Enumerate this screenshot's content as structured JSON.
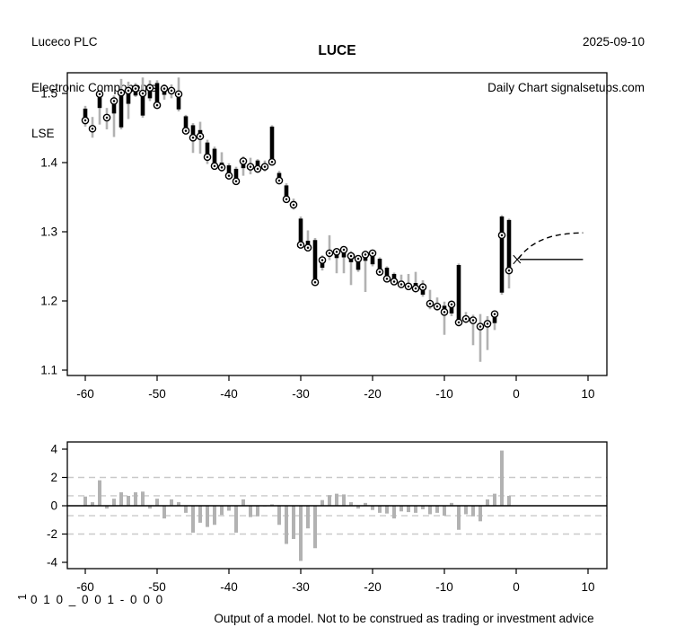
{
  "header": {
    "company": "Luceco PLC",
    "sector": "Electronic Components",
    "exchange": "LSE",
    "date": "2025-09-10",
    "subtitle": "Daily Chart signalsetups.com"
  },
  "title": "LUCE",
  "footer": {
    "side_label": "1",
    "code": "0 1 0 _ 0 0 1 - 0 0 0",
    "disclaimer": "Output of a model. Not to be construed as trading or investment advice"
  },
  "colors": {
    "bar": "#000000",
    "wick": "#b2b2b2",
    "model_bar": "#b2b2b2",
    "threshold": "#c9c9c9",
    "axis": "#000000",
    "background": "#ffffff"
  },
  "chart_data": [
    {
      "type": "ohlc-bars",
      "title": "LUCE",
      "xlabel": "",
      "ylabel": "",
      "xlim": [
        -62.5,
        12.5
      ],
      "ylim": [
        1.095,
        1.535
      ],
      "xticks": [
        -60,
        -50,
        -40,
        -30,
        -20,
        -10,
        0,
        10
      ],
      "yticks": [
        1.1,
        1.2,
        1.3,
        1.4,
        1.5
      ],
      "grid": false,
      "bar_fields": [
        "day",
        "high",
        "low",
        "bar_top",
        "bar_bottom",
        "close"
      ],
      "bars": [
        [
          -60,
          1.482,
          1.452,
          1.478,
          1.461,
          1.461
        ],
        [
          -59,
          1.466,
          1.436,
          1.452,
          1.446,
          1.449
        ],
        [
          -58,
          1.501,
          1.455,
          1.499,
          1.479,
          1.499
        ],
        [
          -57,
          1.479,
          1.448,
          1.469,
          1.461,
          1.465
        ],
        [
          -56,
          1.497,
          1.437,
          1.489,
          1.471,
          1.489
        ],
        [
          -55,
          1.521,
          1.448,
          1.501,
          1.451,
          1.501
        ],
        [
          -54,
          1.517,
          1.463,
          1.504,
          1.485,
          1.504
        ],
        [
          -53,
          1.515,
          1.495,
          1.507,
          1.497,
          1.507
        ],
        [
          -52,
          1.523,
          1.465,
          1.5,
          1.468,
          1.5
        ],
        [
          -51,
          1.519,
          1.489,
          1.508,
          1.493,
          1.508
        ],
        [
          -50,
          1.519,
          1.479,
          1.515,
          1.483,
          1.483
        ],
        [
          -49,
          1.513,
          1.491,
          1.507,
          1.498,
          1.507
        ],
        [
          -48,
          1.513,
          1.493,
          1.506,
          1.501,
          1.504
        ],
        [
          -47,
          1.523,
          1.474,
          1.499,
          1.477,
          1.499
        ],
        [
          -46,
          1.469,
          1.441,
          1.467,
          1.446,
          1.446
        ],
        [
          -45,
          1.457,
          1.414,
          1.454,
          1.436,
          1.436
        ],
        [
          -44,
          1.459,
          1.413,
          1.447,
          1.437,
          1.438
        ],
        [
          -43,
          1.433,
          1.398,
          1.429,
          1.407,
          1.408
        ],
        [
          -42,
          1.423,
          1.39,
          1.42,
          1.394,
          1.395
        ],
        [
          -41,
          1.415,
          1.387,
          1.4,
          1.392,
          1.393
        ],
        [
          -40,
          1.399,
          1.375,
          1.396,
          1.38,
          1.381
        ],
        [
          -39,
          1.394,
          1.369,
          1.391,
          1.372,
          1.373
        ],
        [
          -38,
          1.409,
          1.381,
          1.402,
          1.392,
          1.402
        ],
        [
          -37,
          1.407,
          1.383,
          1.396,
          1.39,
          1.394
        ],
        [
          -36,
          1.405,
          1.385,
          1.403,
          1.39,
          1.391
        ],
        [
          -35,
          1.403,
          1.387,
          1.397,
          1.391,
          1.394
        ],
        [
          -34,
          1.454,
          1.396,
          1.452,
          1.4,
          1.401
        ],
        [
          -33,
          1.388,
          1.37,
          1.385,
          1.373,
          1.374
        ],
        [
          -32,
          1.37,
          1.343,
          1.367,
          1.346,
          1.347
        ],
        [
          -31,
          1.348,
          1.332,
          1.344,
          1.337,
          1.339
        ],
        [
          -30,
          1.322,
          1.277,
          1.319,
          1.28,
          1.281
        ],
        [
          -29,
          1.302,
          1.272,
          1.287,
          1.277,
          1.277
        ],
        [
          -28,
          1.291,
          1.222,
          1.288,
          1.226,
          1.227
        ],
        [
          -27,
          1.266,
          1.244,
          1.261,
          1.248,
          1.259
        ],
        [
          -26,
          1.295,
          1.259,
          1.272,
          1.266,
          1.269
        ],
        [
          -25,
          1.276,
          1.24,
          1.273,
          1.262,
          1.271
        ],
        [
          -24,
          1.278,
          1.24,
          1.275,
          1.263,
          1.274
        ],
        [
          -23,
          1.272,
          1.223,
          1.268,
          1.256,
          1.265
        ],
        [
          -22,
          1.266,
          1.242,
          1.262,
          1.245,
          1.261
        ],
        [
          -21,
          1.273,
          1.213,
          1.269,
          1.258,
          1.267
        ],
        [
          -20,
          1.272,
          1.25,
          1.27,
          1.253,
          1.269
        ],
        [
          -19,
          1.263,
          1.238,
          1.261,
          1.241,
          1.242
        ],
        [
          -18,
          1.25,
          1.228,
          1.248,
          1.231,
          1.232
        ],
        [
          -17,
          1.241,
          1.223,
          1.239,
          1.227,
          1.228
        ],
        [
          -16,
          1.238,
          1.22,
          1.229,
          1.223,
          1.224
        ],
        [
          -15,
          1.239,
          1.217,
          1.224,
          1.22,
          1.221
        ],
        [
          -14,
          1.242,
          1.214,
          1.226,
          1.217,
          1.218
        ],
        [
          -13,
          1.23,
          1.206,
          1.221,
          1.209,
          1.22
        ],
        [
          -12,
          1.216,
          1.188,
          1.198,
          1.194,
          1.196
        ],
        [
          -11,
          1.205,
          1.186,
          1.194,
          1.19,
          1.192
        ],
        [
          -10,
          1.199,
          1.151,
          1.193,
          1.183,
          1.184
        ],
        [
          -9,
          1.2,
          1.178,
          1.196,
          1.182,
          1.195
        ],
        [
          -8,
          1.254,
          1.163,
          1.252,
          1.167,
          1.169
        ],
        [
          -7,
          1.184,
          1.168,
          1.177,
          1.171,
          1.174
        ],
        [
          -6,
          1.18,
          1.136,
          1.176,
          1.168,
          1.172
        ],
        [
          -5,
          1.181,
          1.112,
          1.167,
          1.16,
          1.163
        ],
        [
          -4,
          1.178,
          1.129,
          1.172,
          1.164,
          1.167
        ],
        [
          -3,
          1.186,
          1.158,
          1.183,
          1.168,
          1.181
        ],
        [
          -2,
          1.324,
          1.209,
          1.322,
          1.212,
          1.295
        ],
        [
          -1,
          1.319,
          1.218,
          1.317,
          1.242,
          1.244
        ]
      ],
      "forecast": {
        "solid_level": 1.26,
        "solid_from": 0.5,
        "solid_to": 9.3,
        "dashed": [
          [
            0.3,
            1.261
          ],
          [
            1,
            1.27
          ],
          [
            2,
            1.279
          ],
          [
            3,
            1.2855
          ],
          [
            4,
            1.29
          ],
          [
            5,
            1.2935
          ],
          [
            6,
            1.2955
          ],
          [
            7,
            1.297
          ],
          [
            8,
            1.298
          ],
          [
            9.3,
            1.2985
          ]
        ],
        "fork": [
          [
            -0.4,
            1.266,
            0.6,
            1.2545
          ],
          [
            -0.4,
            1.2535,
            0.6,
            1.2655
          ]
        ]
      }
    },
    {
      "type": "bar",
      "title": "",
      "xlabel": "",
      "ylabel": "1",
      "xlim": [
        -62.5,
        12.5
      ],
      "ylim": [
        -4.4,
        4.4
      ],
      "xticks": [
        -60,
        -50,
        -40,
        -30,
        -20,
        -10,
        0,
        10
      ],
      "yticks": [
        -4,
        -2,
        0,
        2,
        4
      ],
      "thresholds": [
        2,
        0.7,
        -0.7,
        -2
      ],
      "zero_line": 0,
      "x": [
        -60,
        -59,
        -58,
        -57,
        -56,
        -55,
        -54,
        -53,
        -52,
        -51,
        -50,
        -49,
        -48,
        -47,
        -46,
        -45,
        -44,
        -43,
        -42,
        -41,
        -40,
        -39,
        -38,
        -37,
        -36,
        -35,
        -34,
        -33,
        -32,
        -31,
        -30,
        -29,
        -28,
        -27,
        -26,
        -25,
        -24,
        -23,
        -22,
        -21,
        -20,
        -19,
        -18,
        -17,
        -16,
        -15,
        -14,
        -13,
        -12,
        -11,
        -10,
        -9,
        -8,
        -7,
        -6,
        -5,
        -4,
        -3,
        -2,
        -1
      ],
      "values": [
        0.65,
        0.25,
        1.8,
        -0.2,
        0.5,
        0.95,
        0.7,
        0.95,
        1.0,
        -0.2,
        0.5,
        -0.9,
        0.45,
        0.25,
        -0.5,
        -1.9,
        -1.2,
        -1.5,
        -1.35,
        -0.65,
        -0.35,
        -1.9,
        0.45,
        -0.8,
        -0.75,
        -0.05,
        0.1,
        -1.35,
        -2.7,
        -2.35,
        -3.9,
        -1.6,
        -3.0,
        0.4,
        0.75,
        0.85,
        0.8,
        0.25,
        -0.2,
        0.2,
        -0.3,
        -0.5,
        -0.55,
        -0.9,
        -0.4,
        -0.45,
        -0.5,
        -0.25,
        -0.6,
        -0.5,
        -0.7,
        0.2,
        -1.7,
        -0.6,
        -0.75,
        -1.1,
        0.45,
        0.85,
        3.9,
        0.7
      ]
    }
  ]
}
